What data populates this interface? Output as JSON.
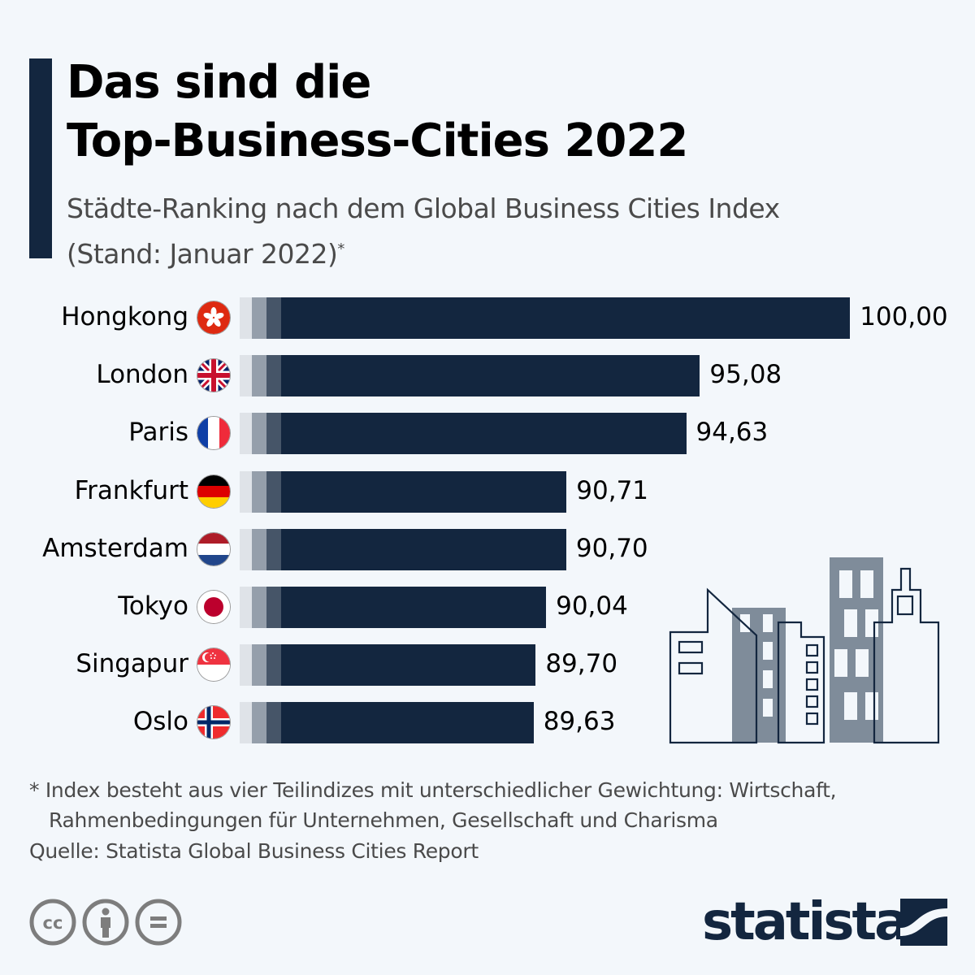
{
  "header": {
    "title_line1": "Das sind die",
    "title_line2": "Top-Business-Cities 2022",
    "subtitle_line1": "Städte-Ranking nach dem Global Business Cities Index",
    "subtitle_line2": "(Stand: Januar 2022)",
    "subtitle_marker": "*"
  },
  "chart_data": {
    "type": "bar",
    "orientation": "horizontal",
    "title": "Das sind die Top-Business-Cities 2022",
    "subtitle": "Städte-Ranking nach dem Global Business Cities Index (Stand: Januar 2022)*",
    "xlabel": "",
    "ylabel": "",
    "axis_min": 80,
    "axis_max": 100,
    "grid": false,
    "legend": "none",
    "categories": [
      "Hongkong",
      "London",
      "Paris",
      "Frankfurt",
      "Amsterdam",
      "Tokyo",
      "Singapur",
      "Oslo"
    ],
    "values": [
      100.0,
      95.08,
      94.63,
      90.71,
      90.7,
      90.04,
      89.7,
      89.63
    ],
    "value_labels": [
      "100,00",
      "95,08",
      "94,63",
      "90,71",
      "90,70",
      "90,04",
      "89,70",
      "89,63"
    ],
    "flags": [
      "hong-kong-flag",
      "uk-flag",
      "france-flag",
      "germany-flag",
      "netherlands-flag",
      "japan-flag",
      "singapore-flag",
      "norway-flag"
    ],
    "colors": {
      "bar": "#13263f",
      "bar_stub_1": "#dfe3e8",
      "bar_stub_2": "#959fab",
      "bar_stub_3": "#465568"
    }
  },
  "footer": {
    "footnote_line1": "* Index besteht aus vier Teilindizes mit unterschiedlicher Gewichtung: Wirtschaft,",
    "footnote_line2": "Rahmenbedingungen für Unternehmen, Gesellschaft und Charisma",
    "source": "Quelle: Statista Global Business Cities Report",
    "brand": "statista",
    "license_icons": [
      "cc-icon",
      "attribution-icon",
      "no-derivatives-icon"
    ]
  },
  "illustration": "city-skyline"
}
